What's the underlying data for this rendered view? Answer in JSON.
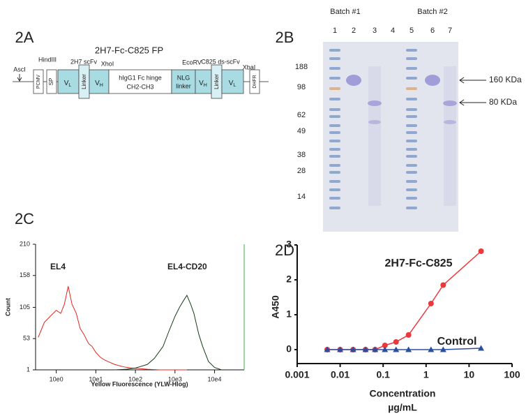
{
  "panel_a": {
    "label": "2A",
    "title": "2H7-Fc-C825 FP",
    "sites": {
      "asc": "AscI",
      "hind": "HindIII",
      "xho": "XhoI",
      "eco": "EcoRV",
      "xba": "XbaI"
    },
    "promoter": "PCMV",
    "signal": "SP",
    "scfv_1": "2H7 scFv",
    "scfv_2": "C825 ds-scFv",
    "vl": {
      "main": "V",
      "sub": "L"
    },
    "vh": {
      "main": "V",
      "sub": "H"
    },
    "linker": "Linker",
    "fc": [
      "hIgG1 Fc hinge",
      "CH2-CH3"
    ],
    "nlg": [
      "NLG",
      "linker"
    ],
    "dhfr": "DHFR"
  },
  "panel_b": {
    "label": "2B",
    "batches": [
      "Batch #1",
      "Batch #2"
    ],
    "lanes": [
      "1",
      "2",
      "3",
      "4",
      "5",
      "6",
      "7"
    ],
    "markers": [
      188,
      98,
      62,
      49,
      38,
      28,
      14
    ],
    "arrows": [
      "160 KDa",
      "80 KDa"
    ]
  },
  "chart_data": [
    {
      "type": "line",
      "label": "2C",
      "y_label": "Count",
      "x_label": "Yellow Fluorescence (YLW-Hlog)",
      "x_scale": "log",
      "xlim": [
        0.3,
        56000
      ],
      "ylim": [
        1,
        210
      ],
      "xticks": [
        {
          "value": 1,
          "label": "10e0"
        },
        {
          "value": 10,
          "label": "10e1"
        },
        {
          "value": 100,
          "label": "10e2"
        },
        {
          "value": 1000,
          "label": "10e3"
        },
        {
          "value": 10000,
          "label": "10e4"
        }
      ],
      "yticks": [
        1,
        53,
        105,
        158,
        210
      ],
      "series": [
        {
          "name": "EL4",
          "color": "#e3241b",
          "x": [
            0.35,
            0.5,
            0.7,
            1.0,
            1.3,
            1.6,
            2.0,
            2.5,
            3.2,
            4,
            5,
            6.5,
            8,
            10,
            13,
            16,
            20,
            30,
            50,
            80,
            130,
            200,
            400,
            800,
            2000
          ],
          "values": [
            55,
            80,
            90,
            100,
            95,
            110,
            140,
            110,
            95,
            70,
            60,
            45,
            40,
            30,
            22,
            18,
            15,
            10,
            6,
            4,
            3,
            2,
            1,
            1,
            1
          ]
        },
        {
          "name": "EL4-CD20",
          "color": "#123d12",
          "x": [
            30,
            60,
            100,
            200,
            300,
            500,
            700,
            1000,
            1300,
            1600,
            2000,
            2500,
            3000,
            4000,
            5000,
            7000,
            10000,
            15000
          ],
          "values": [
            1,
            2,
            4,
            10,
            20,
            40,
            65,
            90,
            105,
            115,
            125,
            110,
            95,
            60,
            40,
            15,
            5,
            1
          ]
        }
      ]
    },
    {
      "type": "line",
      "label": "2D",
      "y_label": "A450",
      "x_label": [
        "Concentration",
        "µg/mL"
      ],
      "x_scale": "log",
      "xlim": [
        0.001,
        100
      ],
      "ylim": [
        -0.4,
        3
      ],
      "xticks": [
        0.001,
        0.01,
        0.1,
        1,
        10,
        100
      ],
      "yticks": [
        0,
        1,
        2,
        3
      ],
      "series": [
        {
          "name": "2H7-Fc-C825",
          "color": "#e8393c",
          "marker": "circle",
          "x": [
            0.005,
            0.01,
            0.02,
            0.039,
            0.065,
            0.11,
            0.2,
            0.39,
            1.3,
            2.5,
            19
          ],
          "values": [
            0,
            0,
            0,
            0,
            0,
            0.12,
            0.22,
            0.42,
            1.32,
            1.85,
            2.82
          ]
        },
        {
          "name": "Control",
          "color": "#2b4ea3",
          "marker": "triangle",
          "x": [
            0.005,
            0.01,
            0.02,
            0.039,
            0.065,
            0.11,
            0.2,
            0.39,
            1.3,
            2.5,
            19
          ],
          "values": [
            0,
            0,
            0,
            0,
            0,
            0,
            0,
            0,
            0,
            0,
            0.04
          ]
        }
      ]
    }
  ]
}
